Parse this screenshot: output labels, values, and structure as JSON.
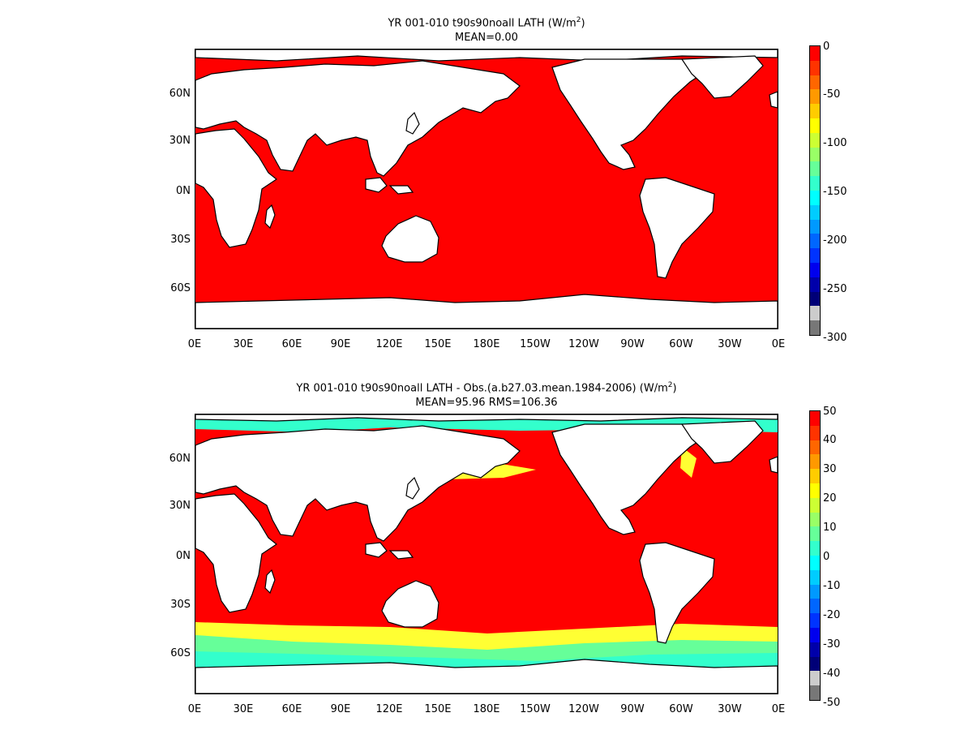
{
  "panels": [
    {
      "title_line1": "YR 001-010 t90s90noall  LATH (W/m",
      "title_sup": "2",
      "title_close": ")",
      "title_line2": "MEAN=0.00",
      "colorbar_labels": [
        "0",
        "-50",
        "-100",
        "-150",
        "-200",
        "-250",
        "-300"
      ],
      "colorbar_colors": [
        "#ff0000",
        "#ff3300",
        "#ff6600",
        "#ff9900",
        "#ffcc00",
        "#ffff00",
        "#ccff33",
        "#99ff66",
        "#66ff99",
        "#33ffcc",
        "#00ffff",
        "#00ccff",
        "#0099ff",
        "#0066ff",
        "#0033ff",
        "#0000ee",
        "#0000aa",
        "#000077",
        "#cccccc",
        "#777777"
      ],
      "ocean_color": "#ff0000"
    },
    {
      "title_line1": "YR 001-010 t90s90noall LATH - Obs.(a.b27.03.mean.1984-2006) (W/m",
      "title_sup": "2",
      "title_close": ")",
      "title_line2": "MEAN=95.96 RMS=106.36",
      "colorbar_labels": [
        "50",
        "40",
        "30",
        "20",
        "10",
        "0",
        "-10",
        "-20",
        "-30",
        "-40",
        "-50"
      ],
      "colorbar_colors": [
        "#ff0000",
        "#ff3300",
        "#ff6600",
        "#ff9900",
        "#ffcc00",
        "#ffff00",
        "#ccff33",
        "#99ff66",
        "#66ff99",
        "#33ffcc",
        "#00ffff",
        "#00ccff",
        "#0099ff",
        "#0066ff",
        "#0033ff",
        "#0000ee",
        "#0000aa",
        "#000077",
        "#cccccc",
        "#777777"
      ],
      "ocean_color": "#ff0000",
      "band_colors": [
        "#ffff33",
        "#66ff99",
        "#33ffcc"
      ]
    }
  ],
  "lat_labels": [
    "60N",
    "30N",
    "0N",
    "30S",
    "60S"
  ],
  "lon_labels": [
    "0E",
    "30E",
    "60E",
    "90E",
    "120E",
    "150E",
    "180E",
    "150W",
    "120W",
    "90W",
    "60W",
    "30W",
    "0E"
  ]
}
